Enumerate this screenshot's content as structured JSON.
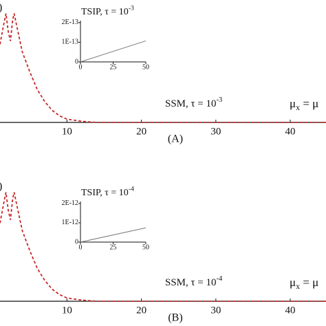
{
  "chart_data": [
    {
      "type": "line",
      "corner_label": ")",
      "panel_label": "(A)",
      "annotations": [
        [
          {
            "text": "SSM, τ = 10"
          },
          {
            "text": "-3",
            "sup": true
          }
        ],
        [
          {
            "text": "μ"
          },
          {
            "text": "x",
            "sub": true
          },
          {
            "text": " = μ"
          }
        ]
      ],
      "x": [
        1,
        1.5,
        1.8,
        2.1,
        2.4,
        2.7,
        2.9,
        3.3,
        4,
        5,
        6,
        7,
        8,
        9,
        10,
        12,
        14,
        20,
        30,
        40,
        44.8
      ],
      "values": [
        0.71,
        0.89,
        0.99,
        0.83,
        0.74,
        0.93,
        0.99,
        0.86,
        0.64,
        0.46,
        0.3,
        0.19,
        0.11,
        0.06,
        0.03,
        0.01,
        0,
        0,
        0,
        0,
        0
      ],
      "color": "#c62828",
      "dashed": true,
      "xlim": [
        1,
        44.8
      ],
      "ylim": [
        0,
        1
      ],
      "xticks": [
        10,
        20,
        30,
        40
      ]
    },
    {
      "type": "line",
      "title": [
        {
          "text": "TSIP, τ = 10"
        },
        {
          "text": "-3",
          "sup": true
        }
      ],
      "x": [
        0,
        50
      ],
      "values": [
        0,
        1.07e-13
      ],
      "color": "#777777",
      "dashed": false,
      "xlim": [
        0,
        50
      ],
      "ylim": [
        0,
        2.1e-13
      ],
      "xticks": [
        0,
        25,
        50
      ],
      "yticks": [
        0,
        {
          "value": 1e-13,
          "label": "1E-13"
        },
        {
          "value": 2e-13,
          "label": "2E-13"
        }
      ]
    },
    {
      "type": "line",
      "corner_label": ")",
      "panel_label": "(B)",
      "annotations": [
        [
          {
            "text": "SSM, τ = 10"
          },
          {
            "text": "-4",
            "sup": true
          }
        ],
        [
          {
            "text": "μ"
          },
          {
            "text": "x",
            "sub": true
          },
          {
            "text": " = μ"
          }
        ]
      ],
      "x": [
        1,
        1.5,
        1.8,
        2.1,
        2.4,
        2.7,
        2.9,
        3.3,
        4,
        5,
        6,
        7,
        8,
        9,
        10,
        12,
        14,
        20,
        30,
        40,
        44.8
      ],
      "values": [
        0.71,
        0.89,
        0.99,
        0.83,
        0.74,
        0.93,
        0.99,
        0.86,
        0.64,
        0.46,
        0.3,
        0.19,
        0.11,
        0.06,
        0.03,
        0.01,
        0,
        0,
        0,
        0,
        0
      ],
      "color": "#c62828",
      "dashed": true,
      "xlim": [
        1,
        44.8
      ],
      "ylim": [
        0,
        1
      ],
      "xticks": [
        10,
        20,
        30,
        40
      ]
    },
    {
      "type": "line",
      "title": [
        {
          "text": "TSIP, τ = 10"
        },
        {
          "text": "-4",
          "sup": true
        }
      ],
      "x": [
        0,
        50
      ],
      "values": [
        0,
        7.4e-13
      ],
      "color": "#777777",
      "dashed": false,
      "xlim": [
        0,
        50
      ],
      "ylim": [
        0,
        2.1e-12
      ],
      "xticks": [
        0,
        25,
        50
      ],
      "yticks": [
        0,
        {
          "value": 1e-12,
          "label": "1E-12"
        },
        {
          "value": 2e-12,
          "label": "2E-12"
        }
      ]
    }
  ]
}
